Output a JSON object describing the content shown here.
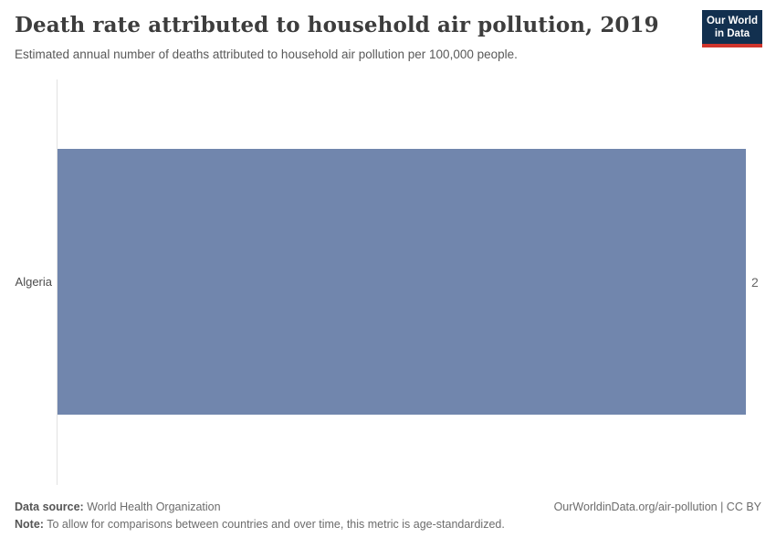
{
  "header": {
    "title": "Death rate attributed to household air pollution, 2019",
    "subtitle": "Estimated annual number of deaths attributed to household air pollution per 100,000 people.",
    "logo": {
      "line1": "Our World",
      "line2": "in Data"
    }
  },
  "chart_data": {
    "type": "bar",
    "orientation": "horizontal",
    "title": "Death rate attributed to household air pollution, 2019",
    "categories": [
      "Algeria"
    ],
    "values": [
      2
    ],
    "value_labels": [
      "2"
    ],
    "xlabel": "",
    "ylabel": "",
    "xlim": [
      0,
      2
    ],
    "grid": false,
    "legend": false,
    "bar_color": "#7186ad"
  },
  "footer": {
    "datasource_label": "Data source:",
    "datasource_value": " World Health Organization",
    "note_label": "Note:",
    "note_value": " To allow for comparisons between countries and over time, this metric is age-standardized.",
    "license": "OurWorldinData.org/air-pollution | CC BY"
  },
  "colors": {
    "bar": "#7186ad",
    "axis_line": "#e2e2e2",
    "logo_background": "#12304f",
    "logo_accent": "#d0352c",
    "title_text": "#3d3d3d"
  }
}
